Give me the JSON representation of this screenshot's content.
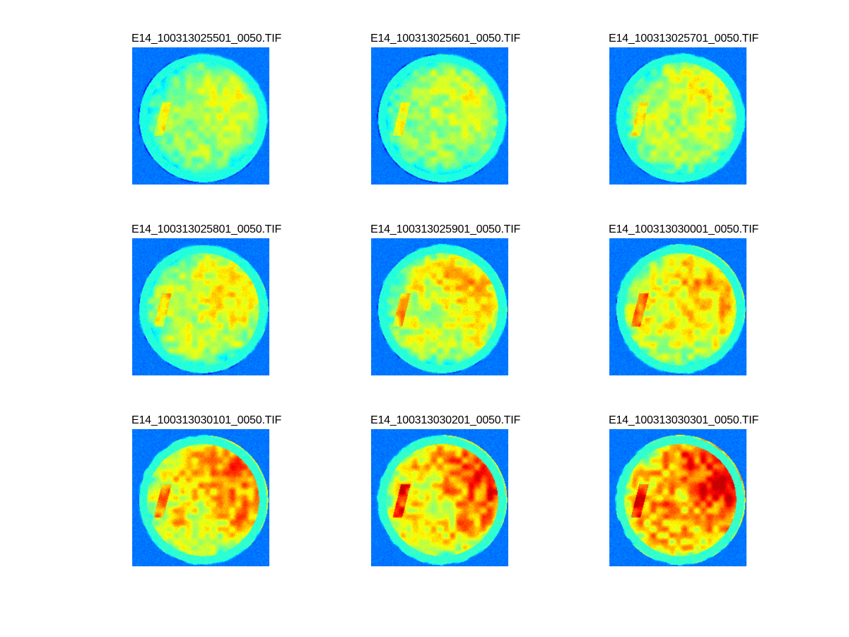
{
  "figure": {
    "background": "#ffffff",
    "colormap": "jet",
    "panels": [
      {
        "title": "E14_100313025501_0050.TIF",
        "intensity": 0.1,
        "seed": 11
      },
      {
        "title": "E14_100313025601_0050.TIF",
        "intensity": 0.16,
        "seed": 23
      },
      {
        "title": "E14_100313025701_0050.TIF",
        "intensity": 0.22,
        "seed": 37
      },
      {
        "title": "E14_100313025801_0050.TIF",
        "intensity": 0.32,
        "seed": 41
      },
      {
        "title": "E14_100313025901_0050.TIF",
        "intensity": 0.4,
        "seed": 53
      },
      {
        "title": "E14_100313030001_0050.TIF",
        "intensity": 0.5,
        "seed": 67
      },
      {
        "title": "E14_100313030101_0050.TIF",
        "intensity": 0.64,
        "seed": 71
      },
      {
        "title": "E14_100313030201_0050.TIF",
        "intensity": 0.76,
        "seed": 83
      },
      {
        "title": "E14_100313030301_0050.TIF",
        "intensity": 0.88,
        "seed": 97
      }
    ]
  }
}
